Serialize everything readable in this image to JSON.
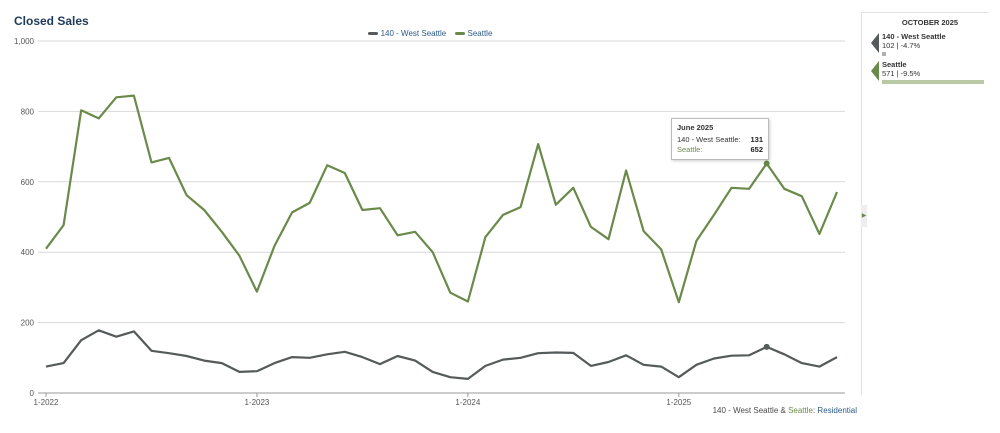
{
  "title": "Closed Sales",
  "legend": {
    "series1": "140 - West Seattle",
    "series2": "Seattle"
  },
  "colors": {
    "series1": "#555a5a",
    "series2": "#6a8a4a",
    "grid": "#d9d9d9"
  },
  "footer": {
    "series1": "140 - West Seattle",
    "amp": " & ",
    "series2": "Seattle",
    "sep": ": ",
    "property": "Residential"
  },
  "tooltip": {
    "title": "June 2025",
    "row1_label": "140 - West Seattle:",
    "row1_value": "131",
    "row2_label": "Seattle:",
    "row2_value": "652"
  },
  "side": {
    "title": "OCTOBER 2025",
    "entries": [
      {
        "name": "140 - West Seattle",
        "detail": "102 | -4.7%",
        "bar_fraction": 0.04
      },
      {
        "name": "Seattle",
        "detail": "571 | -9.5%",
        "bar_fraction": 1.0
      }
    ]
  },
  "chart_data": {
    "type": "line",
    "x": [
      "2022-01",
      "2022-02",
      "2022-03",
      "2022-04",
      "2022-05",
      "2022-06",
      "2022-07",
      "2022-08",
      "2022-09",
      "2022-10",
      "2022-11",
      "2022-12",
      "2023-01",
      "2023-02",
      "2023-03",
      "2023-04",
      "2023-05",
      "2023-06",
      "2023-07",
      "2023-08",
      "2023-09",
      "2023-10",
      "2023-11",
      "2023-12",
      "2024-01",
      "2024-02",
      "2024-03",
      "2024-04",
      "2024-05",
      "2024-06",
      "2024-07",
      "2024-08",
      "2024-09",
      "2024-10",
      "2024-11",
      "2024-12",
      "2025-01",
      "2025-02",
      "2025-03",
      "2025-04",
      "2025-05",
      "2025-06",
      "2025-07",
      "2025-08",
      "2025-09",
      "2025-10"
    ],
    "x_tick_labels": [
      "1-2022",
      "1-2023",
      "1-2024",
      "1-2025"
    ],
    "x_tick_index": [
      0,
      12,
      24,
      36
    ],
    "ylim": [
      0,
      1000
    ],
    "y_ticks": [
      0,
      200,
      400,
      600,
      800,
      1000
    ],
    "y_tick_labels": [
      "0",
      "200",
      "400",
      "600",
      "800",
      "1,000"
    ],
    "series": [
      {
        "name": "140 - West Seattle",
        "values": [
          75,
          85,
          150,
          178,
          160,
          175,
          120,
          113,
          105,
          92,
          85,
          60,
          62,
          85,
          102,
          100,
          110,
          117,
          102,
          82,
          105,
          92,
          60,
          45,
          40,
          77,
          95,
          100,
          113,
          115,
          114,
          77,
          88,
          107,
          80,
          75,
          45,
          80,
          98,
          106,
          107,
          131,
          110,
          85,
          75,
          102
        ]
      },
      {
        "name": "Seattle",
        "values": [
          410,
          477,
          803,
          780,
          840,
          845,
          655,
          668,
          562,
          520,
          458,
          390,
          288,
          418,
          513,
          540,
          647,
          625,
          520,
          525,
          448,
          458,
          400,
          285,
          260,
          443,
          506,
          528,
          707,
          535,
          583,
          472,
          437,
          632,
          460,
          408,
          258,
          432,
          506,
          583,
          580,
          652,
          580,
          559,
          452,
          571
        ]
      }
    ],
    "highlight_index": 41
  }
}
